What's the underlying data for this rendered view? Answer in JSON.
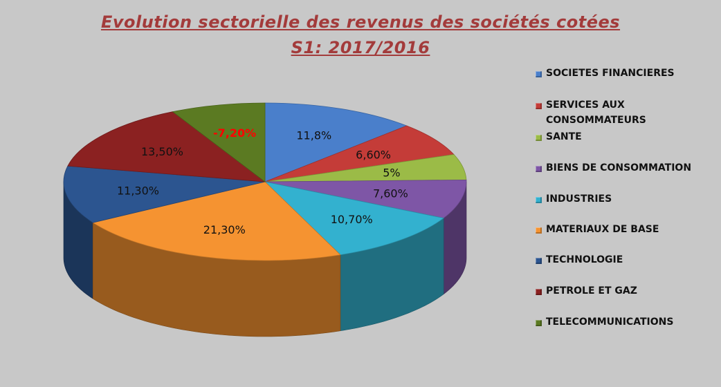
{
  "chart_data": {
    "type": "pie",
    "title_line1": "Evolution sectorielle des revenus des sociétés cotées",
    "title_line2": "S1: 2017/2016",
    "legend_position": "right",
    "categories": [
      "SOCIETES FINANCIERES",
      "SERVICES AUX CONSOMMATEURS",
      "SANTE",
      "BIENS DE CONSOMMATION",
      "INDUSTRIES",
      "MATERIAUX DE BASE",
      "TECHNOLOGIE",
      "PETROLE ET GAZ",
      "TELECOMMUNICATIONS"
    ],
    "values": [
      11.8,
      6.6,
      5,
      7.6,
      10.7,
      21.3,
      11.3,
      13.5,
      -7.2
    ],
    "labels": [
      "11,8%",
      "6,60%",
      "5%",
      "7,60%",
      "10,70%",
      "21,30%",
      "11,30%",
      "13,50%",
      "-7,20%"
    ],
    "colors": [
      "#4a7fcb",
      "#c43c38",
      "#9bbb47",
      "#7e56a6",
      "#33b1cf",
      "#f59331",
      "#2c5590",
      "#8b2121",
      "#5b7a22"
    ],
    "label_colors": [
      "#111111",
      "#111111",
      "#111111",
      "#111111",
      "#111111",
      "#111111",
      "#111111",
      "#111111",
      "#ff0000"
    ],
    "highlight_label_index": 8
  }
}
